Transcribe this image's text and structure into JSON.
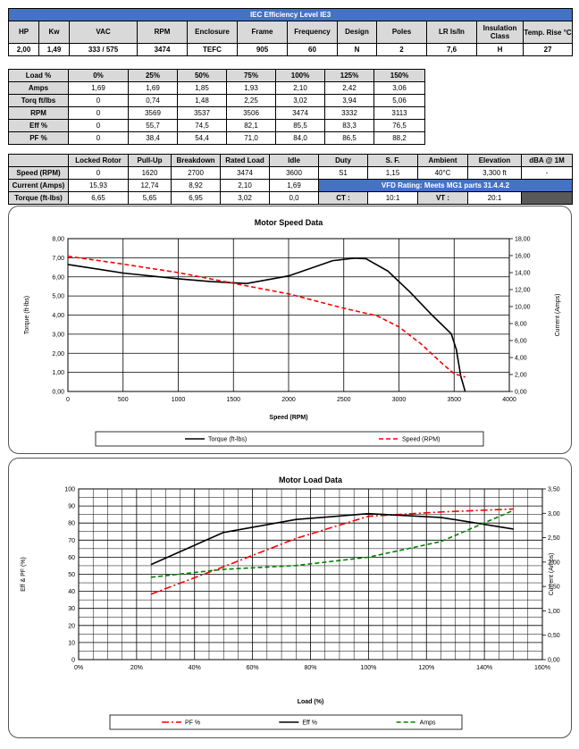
{
  "ie_table": {
    "title": "IEC Efficiency Level IE3",
    "headers": [
      "HP",
      "Kw",
      "VAC",
      "RPM",
      "Enclosure",
      "Frame",
      "Frequency",
      "Design",
      "Poles",
      "LR Is/In",
      "Insulation Class",
      "Temp. Rise °C"
    ],
    "values": [
      "2,00",
      "1,49",
      "333 / 575",
      "3474",
      "TEFC",
      "905",
      "60",
      "N",
      "2",
      "7,6",
      "H",
      "27"
    ]
  },
  "load_table": {
    "headers": [
      "Load %",
      "0%",
      "25%",
      "50%",
      "75%",
      "100%",
      "125%",
      "150%"
    ],
    "rows": [
      [
        "Amps",
        "1,69",
        "1,69",
        "1,85",
        "1,93",
        "2,10",
        "2,42",
        "3,06"
      ],
      [
        "Torq ft/lbs",
        "0",
        "0,74",
        "1,48",
        "2,25",
        "3,02",
        "3,94",
        "5,06"
      ],
      [
        "RPM",
        "0",
        "3569",
        "3537",
        "3506",
        "3474",
        "3332",
        "3113"
      ],
      [
        "Eff %",
        "0",
        "55,7",
        "74,5",
        "82,1",
        "85,5",
        "83,3",
        "76,5"
      ],
      [
        "PF %",
        "0",
        "38,4",
        "54,4",
        "71,0",
        "84,0",
        "86,5",
        "88,2"
      ]
    ]
  },
  "perf_table": {
    "headers": [
      "",
      "Locked Rotor",
      "Pull-Up",
      "Breakdown",
      "Rated Load",
      "Idle",
      "Duty",
      "S. F.",
      "Ambient",
      "Elevation",
      "dBA @ 1M"
    ],
    "rows": [
      [
        "Speed (RPM)",
        "0",
        "1620",
        "2700",
        "3474",
        "3600",
        "S1",
        "1,15",
        "40°C",
        "3,300 ft",
        "-"
      ],
      [
        "Current (Amps)",
        "15,93",
        "12,74",
        "8,92",
        "2,10",
        "1,69"
      ],
      [
        "Torque (ft-lbs)",
        "6,65",
        "5,65",
        "6,95",
        "3,02",
        "0,0"
      ]
    ],
    "vfd_rating": "VFD Rating: Meets MG1 parts 31.4.4.2",
    "ct_label": "CT :",
    "ct_value": "10:1",
    "vt_label": "VT :",
    "vt_value": "20:1"
  },
  "chart_data": [
    {
      "type": "line",
      "title": "Motor Speed Data",
      "xlabel": "Speed (RPM)",
      "ylabel": "Torque (ft-lbs)",
      "y2label": "Current (Amps)",
      "xlim": [
        0,
        4000
      ],
      "ylim": [
        0,
        8
      ],
      "y2lim": [
        0,
        18
      ],
      "x_ticks": [
        "0",
        "500",
        "1000",
        "1500",
        "2000",
        "2500",
        "3000",
        "3500",
        "4000"
      ],
      "y_ticks": [
        "0,00",
        "1,00",
        "2,00",
        "3,00",
        "4,00",
        "5,00",
        "6,00",
        "7,00",
        "8,00"
      ],
      "y2_ticks": [
        "0,00",
        "2,00",
        "4,00",
        "6,00",
        "8,00",
        "10,00",
        "12,00",
        "14,00",
        "16,00",
        "18,00"
      ],
      "series": [
        {
          "name": "Torque (ft-lbs)",
          "axis": "left",
          "color": "#000000",
          "dash": "solid",
          "x": [
            0,
            500,
            1000,
            1300,
            1620,
            2000,
            2400,
            2600,
            2700,
            2900,
            3100,
            3300,
            3474,
            3520,
            3560,
            3600
          ],
          "y": [
            6.65,
            6.2,
            5.9,
            5.75,
            5.65,
            6.05,
            6.85,
            6.98,
            6.95,
            6.3,
            5.2,
            4.0,
            3.02,
            2.2,
            0.8,
            0.0
          ]
        },
        {
          "name": "Speed (RPM)",
          "axis": "right",
          "color": "#ff0000",
          "dash": "dashed",
          "x": [
            0,
            500,
            1000,
            1500,
            2000,
            2500,
            2800,
            3000,
            3200,
            3400,
            3500,
            3600
          ],
          "y": [
            15.93,
            15.0,
            14.0,
            12.74,
            11.5,
            9.8,
            8.92,
            7.6,
            5.6,
            3.2,
            2.1,
            1.69
          ]
        }
      ]
    },
    {
      "type": "line",
      "title": "Motor Load Data",
      "xlabel": "Load (%)",
      "ylabel": "Eff & PF (%)",
      "y2label": "Current (Amps)",
      "xlim": [
        0,
        160
      ],
      "ylim": [
        0,
        100
      ],
      "y2lim": [
        0,
        3.5
      ],
      "x_ticks": [
        "0%",
        "20%",
        "40%",
        "60%",
        "80%",
        "100%",
        "120%",
        "140%",
        "160%"
      ],
      "y_ticks": [
        "0",
        "10",
        "20",
        "30",
        "40",
        "50",
        "60",
        "70",
        "80",
        "90",
        "100"
      ],
      "y2_ticks": [
        "0,00",
        "0,50",
        "1,00",
        "1,50",
        "2,00",
        "2,50",
        "3,00",
        "3,50"
      ],
      "series": [
        {
          "name": "PF %",
          "axis": "left",
          "color": "#ff0000",
          "dash": "dashdot",
          "x": [
            25,
            50,
            75,
            100,
            125,
            150
          ],
          "y": [
            38.4,
            54.4,
            71.0,
            84.0,
            86.5,
            88.2
          ]
        },
        {
          "name": "Eff %",
          "axis": "left",
          "color": "#000000",
          "dash": "solid",
          "x": [
            25,
            50,
            75,
            100,
            125,
            150
          ],
          "y": [
            55.7,
            74.5,
            82.1,
            85.5,
            83.3,
            76.5
          ]
        },
        {
          "name": "Amps",
          "axis": "right",
          "color": "#008000",
          "dash": "dashed",
          "x": [
            25,
            50,
            75,
            100,
            125,
            150
          ],
          "y": [
            1.69,
            1.85,
            1.93,
            2.1,
            2.42,
            3.06
          ]
        }
      ]
    }
  ]
}
